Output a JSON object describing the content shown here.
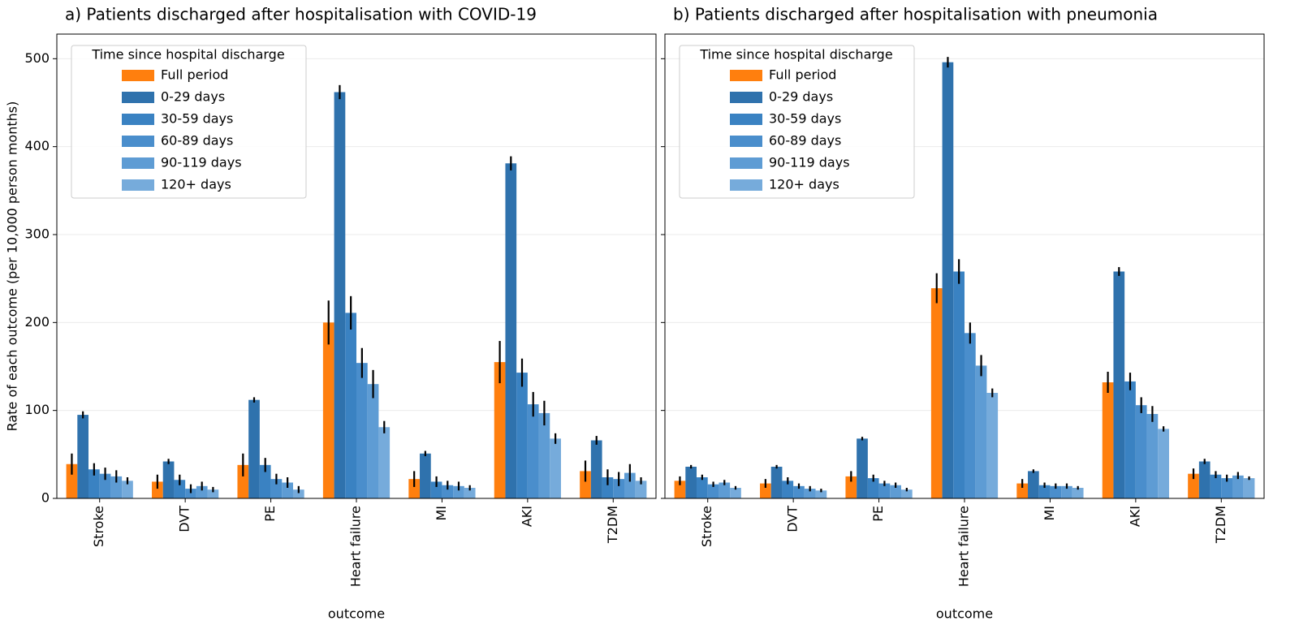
{
  "chart_data": [
    {
      "type": "bar",
      "title": "a) Patients discharged after hospitalisation with COVID-19",
      "x_label": "outcome",
      "y_label": "Rate of each outcome (per 10,000 person months)",
      "categories": [
        "Stroke",
        "DVT",
        "PE",
        "Heart failure",
        "MI",
        "AKI",
        "T2DM"
      ],
      "legend_title": "Time since hospital discharge",
      "legend": "upper left",
      "grid": true,
      "ylim": [
        0,
        528
      ],
      "yticks": [
        0,
        100,
        200,
        300,
        400,
        500
      ],
      "series": [
        {
          "name": "Full period",
          "color": "#ff7f0e",
          "values": [
            39,
            19,
            38,
            200,
            22,
            155,
            31
          ],
          "errors": [
            12,
            8,
            13,
            25,
            9,
            24,
            12
          ]
        },
        {
          "name": "0-29 days",
          "color": "#2f72ad",
          "values": [
            95,
            42,
            112,
            462,
            51,
            381,
            66
          ],
          "errors": [
            4,
            3,
            3,
            8,
            3,
            8,
            5
          ]
        },
        {
          "name": "30-59 days",
          "color": "#3a82c2",
          "values": [
            33,
            21,
            38,
            211,
            19,
            143,
            24
          ],
          "errors": [
            7,
            6,
            8,
            19,
            6,
            16,
            9
          ]
        },
        {
          "name": "60-89 days",
          "color": "#4a8ecc",
          "values": [
            28,
            11,
            22,
            154,
            15,
            107,
            22
          ],
          "errors": [
            7,
            5,
            6,
            17,
            5,
            14,
            8
          ]
        },
        {
          "name": "90-119 days",
          "color": "#5e9cd4",
          "values": [
            25,
            14,
            18,
            130,
            14,
            97,
            29
          ],
          "errors": [
            7,
            5,
            6,
            16,
            5,
            14,
            10
          ]
        },
        {
          "name": "120+ days",
          "color": "#76abdb",
          "values": [
            20,
            10,
            10,
            81,
            12,
            68,
            20
          ],
          "errors": [
            4,
            3,
            4,
            7,
            3,
            6,
            4
          ]
        }
      ]
    },
    {
      "type": "bar",
      "title": "b) Patients discharged after hospitalisation with pneumonia",
      "x_label": "outcome",
      "categories": [
        "Stroke",
        "DVT",
        "PE",
        "Heart failure",
        "MI",
        "AKI",
        "T2DM"
      ],
      "legend_title": "Time since hospital discharge",
      "legend": "upper left",
      "grid": true,
      "ylim": [
        0,
        528
      ],
      "yticks": [
        0,
        100,
        200,
        300,
        400,
        500
      ],
      "series": [
        {
          "name": "Full period",
          "color": "#ff7f0e",
          "values": [
            20,
            17,
            25,
            239,
            17,
            132,
            28
          ],
          "errors": [
            5,
            5,
            6,
            17,
            5,
            12,
            6
          ]
        },
        {
          "name": "0-29 days",
          "color": "#2f72ad",
          "values": [
            36,
            36,
            68,
            496,
            31,
            258,
            42
          ],
          "errors": [
            2,
            2,
            2,
            6,
            2,
            5,
            3
          ]
        },
        {
          "name": "30-59 days",
          "color": "#3a82c2",
          "values": [
            24,
            20,
            23,
            258,
            15,
            133,
            27
          ],
          "errors": [
            3,
            4,
            4,
            14,
            3,
            10,
            4
          ]
        },
        {
          "name": "60-89 days",
          "color": "#4a8ecc",
          "values": [
            16,
            14,
            17,
            188,
            14,
            106,
            23
          ],
          "errors": [
            3,
            3,
            3,
            12,
            3,
            9,
            4
          ]
        },
        {
          "name": "90-119 days",
          "color": "#5e9cd4",
          "values": [
            18,
            11,
            15,
            151,
            14,
            96,
            26
          ],
          "errors": [
            3,
            3,
            3,
            12,
            3,
            9,
            4
          ]
        },
        {
          "name": "120+ days",
          "color": "#76abdb",
          "values": [
            12,
            9,
            10,
            120,
            12,
            79,
            23
          ],
          "errors": [
            2,
            2,
            2,
            5,
            2,
            3,
            2
          ]
        }
      ]
    }
  ]
}
